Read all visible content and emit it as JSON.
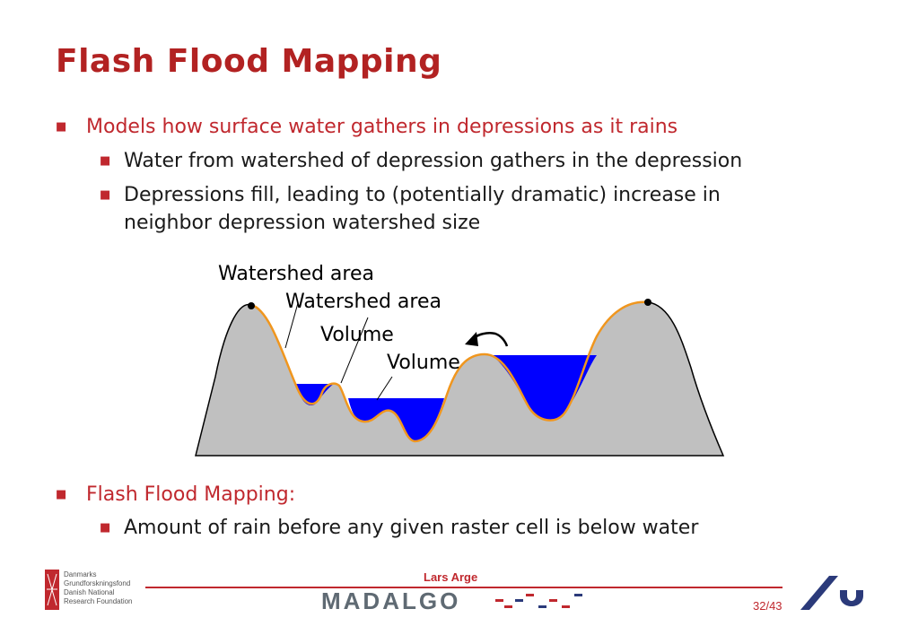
{
  "title": "Flash Flood Mapping",
  "bullets": {
    "b1": "Models how surface water gathers in depressions as it rains",
    "b1_1": "Water from watershed of depression gathers in the depression",
    "b1_2_line1": "Depressions fill, leading to (potentially dramatic) increase in",
    "b1_2_line2": "neighbor depression watershed size",
    "b2": "Flash Flood Mapping:",
    "b2_1": "Amount of rain before any given raster cell is below water"
  },
  "diagram": {
    "label_watershed_1": "Watershed area",
    "label_watershed_2": "Watershed area",
    "label_volume_1": "Volume",
    "label_volume_2": "Volume"
  },
  "footer": {
    "org_lines": [
      "Danmarks",
      "Grundforskningsfond",
      "Danish National",
      "Research Foundation"
    ],
    "author": "Lars Arge",
    "brand": "MADALGO",
    "page": "32/43"
  },
  "colors": {
    "title": "#b22222",
    "terrain": "#c0c0c0",
    "water": "#0000ff",
    "watershed_edge": "#f0961e",
    "footer_rule": "#c0282e",
    "logo_navy": "#2b3a7a"
  }
}
